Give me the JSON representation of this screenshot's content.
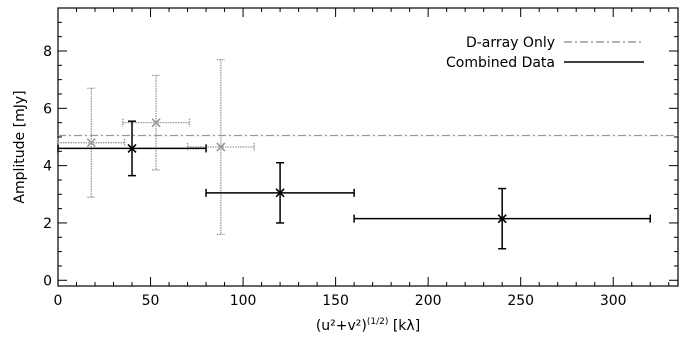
{
  "chart_data": {
    "type": "scatter",
    "xlabel": "(u²+v²)",
    "xlabel_exponent": "(1/2)",
    "xlabel_unit": "[kλ]",
    "ylabel": "Amplitude [mJy]",
    "xlim": [
      0,
      335
    ],
    "ylim": [
      -0.2,
      9.5
    ],
    "x_ticks": [
      0,
      50,
      100,
      150,
      200,
      250,
      300
    ],
    "y_ticks": [
      0,
      2,
      4,
      6,
      8
    ],
    "legend_position": "top-right",
    "series": [
      {
        "name": "D-array Only",
        "color": "#999999",
        "line_style": "dash-dot",
        "reference_line": 5.05,
        "points": [
          {
            "x": 18,
            "y": 4.8,
            "x_err": 18,
            "y_err": 1.9
          },
          {
            "x": 53,
            "y": 5.5,
            "x_err": 18,
            "y_err": 1.65
          },
          {
            "x": 88,
            "y": 4.65,
            "x_err": 18,
            "y_err": 3.05
          }
        ]
      },
      {
        "name": "Combined Data",
        "color": "#000000",
        "line_style": "solid",
        "points": [
          {
            "x": 40,
            "y": 4.6,
            "x_err": 40,
            "y_err": 0.95
          },
          {
            "x": 120,
            "y": 3.05,
            "x_err": 40,
            "y_err": 1.05
          },
          {
            "x": 240,
            "y": 2.15,
            "x_err": 80,
            "y_err": 1.05
          }
        ]
      }
    ]
  }
}
